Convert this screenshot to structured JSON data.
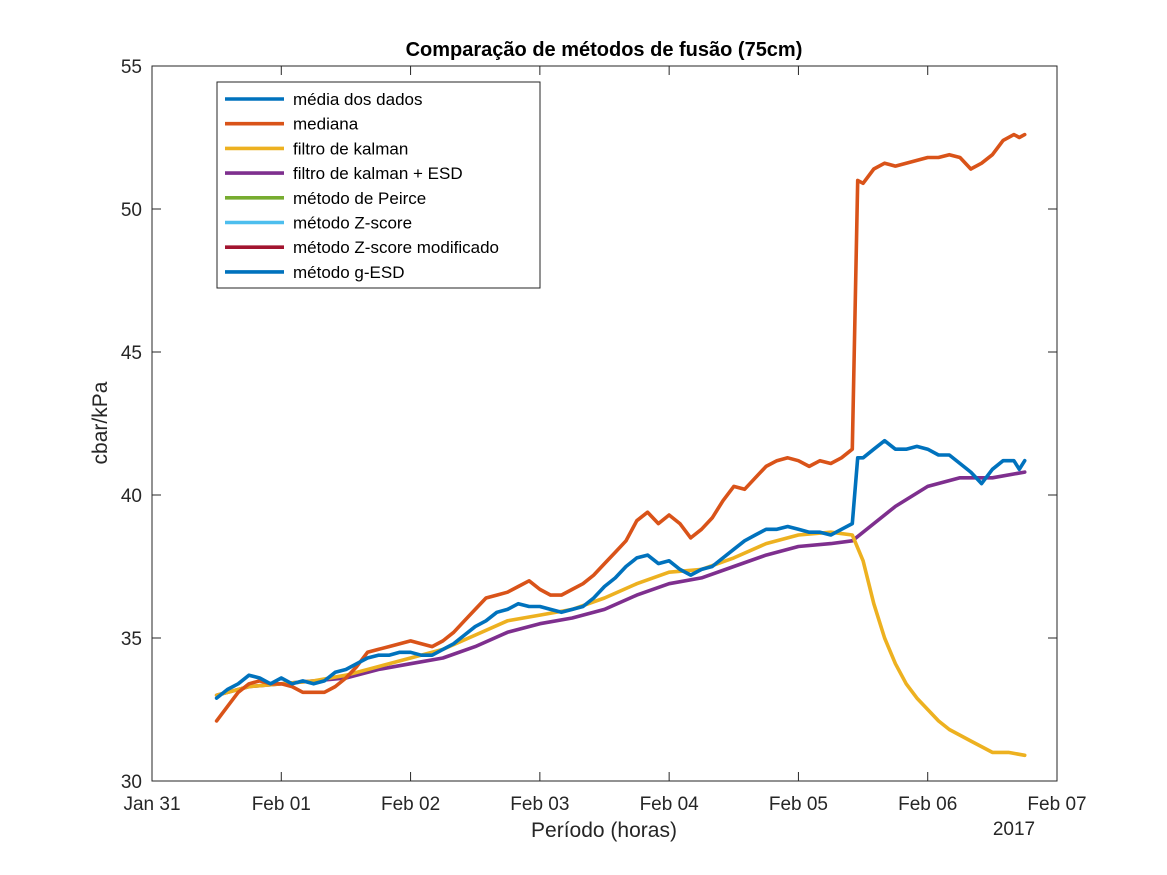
{
  "chart_data": {
    "type": "line",
    "title": "Comparação de métodos de fusão (75cm)",
    "xlabel": "Período (horas)",
    "ylabel": "cbar/kPa",
    "year_label": "2017",
    "x_unit": "date",
    "xlim": [
      "2017-01-31 00:00",
      "2017-02-07 00:00"
    ],
    "ylim": [
      30,
      55
    ],
    "x_ticks": [
      {
        "date": "2017-01-31 00:00",
        "label": "Jan 31"
      },
      {
        "date": "2017-02-01 00:00",
        "label": "Feb 01"
      },
      {
        "date": "2017-02-02 00:00",
        "label": "Feb 02"
      },
      {
        "date": "2017-02-03 00:00",
        "label": "Feb 03"
      },
      {
        "date": "2017-02-04 00:00",
        "label": "Feb 04"
      },
      {
        "date": "2017-02-05 00:00",
        "label": "Feb 05"
      },
      {
        "date": "2017-02-06 00:00",
        "label": "Feb 06"
      },
      {
        "date": "2017-02-07 00:00",
        "label": "Feb 07"
      }
    ],
    "y_ticks": [
      30,
      35,
      40,
      45,
      50,
      55
    ],
    "grid": false,
    "legend_position": "top-left",
    "series": [
      {
        "name": "média dos dados",
        "color": "#0072BD",
        "points": [
          [
            "2017-01-31 12:00",
            32.9
          ],
          [
            "2017-01-31 14:00",
            33.2
          ],
          [
            "2017-01-31 16:00",
            33.4
          ],
          [
            "2017-01-31 18:00",
            33.7
          ],
          [
            "2017-01-31 20:00",
            33.6
          ],
          [
            "2017-01-31 22:00",
            33.4
          ],
          [
            "2017-02-01 00:00",
            33.6
          ],
          [
            "2017-02-01 02:00",
            33.4
          ],
          [
            "2017-02-01 04:00",
            33.5
          ],
          [
            "2017-02-01 06:00",
            33.4
          ],
          [
            "2017-02-01 08:00",
            33.5
          ],
          [
            "2017-02-01 10:00",
            33.8
          ],
          [
            "2017-02-01 12:00",
            33.9
          ],
          [
            "2017-02-01 14:00",
            34.1
          ],
          [
            "2017-02-01 16:00",
            34.3
          ],
          [
            "2017-02-01 18:00",
            34.4
          ],
          [
            "2017-02-01 20:00",
            34.4
          ],
          [
            "2017-02-01 22:00",
            34.5
          ],
          [
            "2017-02-02 00:00",
            34.5
          ],
          [
            "2017-02-02 02:00",
            34.4
          ],
          [
            "2017-02-02 04:00",
            34.4
          ],
          [
            "2017-02-02 06:00",
            34.6
          ],
          [
            "2017-02-02 08:00",
            34.8
          ],
          [
            "2017-02-02 10:00",
            35.1
          ],
          [
            "2017-02-02 12:00",
            35.4
          ],
          [
            "2017-02-02 14:00",
            35.6
          ],
          [
            "2017-02-02 16:00",
            35.9
          ],
          [
            "2017-02-02 18:00",
            36.0
          ],
          [
            "2017-02-02 20:00",
            36.2
          ],
          [
            "2017-02-02 22:00",
            36.1
          ],
          [
            "2017-02-03 00:00",
            36.1
          ],
          [
            "2017-02-03 02:00",
            36.0
          ],
          [
            "2017-02-03 04:00",
            35.9
          ],
          [
            "2017-02-03 06:00",
            36.0
          ],
          [
            "2017-02-03 08:00",
            36.1
          ],
          [
            "2017-02-03 10:00",
            36.4
          ],
          [
            "2017-02-03 12:00",
            36.8
          ],
          [
            "2017-02-03 14:00",
            37.1
          ],
          [
            "2017-02-03 16:00",
            37.5
          ],
          [
            "2017-02-03 18:00",
            37.8
          ],
          [
            "2017-02-03 20:00",
            37.9
          ],
          [
            "2017-02-03 22:00",
            37.6
          ],
          [
            "2017-02-04 00:00",
            37.7
          ],
          [
            "2017-02-04 02:00",
            37.4
          ],
          [
            "2017-02-04 04:00",
            37.2
          ],
          [
            "2017-02-04 06:00",
            37.4
          ],
          [
            "2017-02-04 08:00",
            37.5
          ],
          [
            "2017-02-04 10:00",
            37.8
          ],
          [
            "2017-02-04 12:00",
            38.1
          ],
          [
            "2017-02-04 14:00",
            38.4
          ],
          [
            "2017-02-04 16:00",
            38.6
          ],
          [
            "2017-02-04 18:00",
            38.8
          ],
          [
            "2017-02-04 20:00",
            38.8
          ],
          [
            "2017-02-04 22:00",
            38.9
          ],
          [
            "2017-02-05 00:00",
            38.8
          ],
          [
            "2017-02-05 02:00",
            38.7
          ],
          [
            "2017-02-05 04:00",
            38.7
          ],
          [
            "2017-02-05 06:00",
            38.6
          ],
          [
            "2017-02-05 08:00",
            38.8
          ],
          [
            "2017-02-05 10:00",
            39.0
          ],
          [
            "2017-02-05 11:00",
            41.3
          ],
          [
            "2017-02-05 12:00",
            41.3
          ],
          [
            "2017-02-05 14:00",
            41.6
          ],
          [
            "2017-02-05 16:00",
            41.9
          ],
          [
            "2017-02-05 18:00",
            41.6
          ],
          [
            "2017-02-05 20:00",
            41.6
          ],
          [
            "2017-02-05 22:00",
            41.7
          ],
          [
            "2017-02-06 00:00",
            41.6
          ],
          [
            "2017-02-06 02:00",
            41.4
          ],
          [
            "2017-02-06 04:00",
            41.4
          ],
          [
            "2017-02-06 06:00",
            41.1
          ],
          [
            "2017-02-06 08:00",
            40.8
          ],
          [
            "2017-02-06 10:00",
            40.4
          ],
          [
            "2017-02-06 12:00",
            40.9
          ],
          [
            "2017-02-06 14:00",
            41.2
          ],
          [
            "2017-02-06 16:00",
            41.2
          ],
          [
            "2017-02-06 17:00",
            40.9
          ],
          [
            "2017-02-06 18:00",
            41.2
          ]
        ]
      },
      {
        "name": "mediana",
        "color": "#D95319",
        "points": [
          [
            "2017-01-31 12:00",
            32.1
          ],
          [
            "2017-01-31 14:00",
            32.6
          ],
          [
            "2017-01-31 16:00",
            33.1
          ],
          [
            "2017-01-31 18:00",
            33.4
          ],
          [
            "2017-01-31 20:00",
            33.5
          ],
          [
            "2017-01-31 22:00",
            33.4
          ],
          [
            "2017-02-01 00:00",
            33.4
          ],
          [
            "2017-02-01 02:00",
            33.3
          ],
          [
            "2017-02-01 04:00",
            33.1
          ],
          [
            "2017-02-01 06:00",
            33.1
          ],
          [
            "2017-02-01 08:00",
            33.1
          ],
          [
            "2017-02-01 10:00",
            33.3
          ],
          [
            "2017-02-01 12:00",
            33.6
          ],
          [
            "2017-02-01 14:00",
            34.0
          ],
          [
            "2017-02-01 16:00",
            34.5
          ],
          [
            "2017-02-01 18:00",
            34.6
          ],
          [
            "2017-02-01 20:00",
            34.7
          ],
          [
            "2017-02-01 22:00",
            34.8
          ],
          [
            "2017-02-02 00:00",
            34.9
          ],
          [
            "2017-02-02 02:00",
            34.8
          ],
          [
            "2017-02-02 04:00",
            34.7
          ],
          [
            "2017-02-02 06:00",
            34.9
          ],
          [
            "2017-02-02 08:00",
            35.2
          ],
          [
            "2017-02-02 10:00",
            35.6
          ],
          [
            "2017-02-02 12:00",
            36.0
          ],
          [
            "2017-02-02 14:00",
            36.4
          ],
          [
            "2017-02-02 16:00",
            36.5
          ],
          [
            "2017-02-02 18:00",
            36.6
          ],
          [
            "2017-02-02 20:00",
            36.8
          ],
          [
            "2017-02-02 22:00",
            37.0
          ],
          [
            "2017-02-03 00:00",
            36.7
          ],
          [
            "2017-02-03 02:00",
            36.5
          ],
          [
            "2017-02-03 04:00",
            36.5
          ],
          [
            "2017-02-03 06:00",
            36.7
          ],
          [
            "2017-02-03 08:00",
            36.9
          ],
          [
            "2017-02-03 10:00",
            37.2
          ],
          [
            "2017-02-03 12:00",
            37.6
          ],
          [
            "2017-02-03 14:00",
            38.0
          ],
          [
            "2017-02-03 16:00",
            38.4
          ],
          [
            "2017-02-03 18:00",
            39.1
          ],
          [
            "2017-02-03 20:00",
            39.4
          ],
          [
            "2017-02-03 22:00",
            39.0
          ],
          [
            "2017-02-04 00:00",
            39.3
          ],
          [
            "2017-02-04 02:00",
            39.0
          ],
          [
            "2017-02-04 04:00",
            38.5
          ],
          [
            "2017-02-04 06:00",
            38.8
          ],
          [
            "2017-02-04 08:00",
            39.2
          ],
          [
            "2017-02-04 10:00",
            39.8
          ],
          [
            "2017-02-04 12:00",
            40.3
          ],
          [
            "2017-02-04 14:00",
            40.2
          ],
          [
            "2017-02-04 16:00",
            40.6
          ],
          [
            "2017-02-04 18:00",
            41.0
          ],
          [
            "2017-02-04 20:00",
            41.2
          ],
          [
            "2017-02-04 22:00",
            41.3
          ],
          [
            "2017-02-05 00:00",
            41.2
          ],
          [
            "2017-02-05 02:00",
            41.0
          ],
          [
            "2017-02-05 04:00",
            41.2
          ],
          [
            "2017-02-05 06:00",
            41.1
          ],
          [
            "2017-02-05 08:00",
            41.3
          ],
          [
            "2017-02-05 10:00",
            41.6
          ],
          [
            "2017-02-05 11:00",
            51.0
          ],
          [
            "2017-02-05 12:00",
            50.9
          ],
          [
            "2017-02-05 14:00",
            51.4
          ],
          [
            "2017-02-05 16:00",
            51.6
          ],
          [
            "2017-02-05 18:00",
            51.5
          ],
          [
            "2017-02-05 20:00",
            51.6
          ],
          [
            "2017-02-05 22:00",
            51.7
          ],
          [
            "2017-02-06 00:00",
            51.8
          ],
          [
            "2017-02-06 02:00",
            51.8
          ],
          [
            "2017-02-06 04:00",
            51.9
          ],
          [
            "2017-02-06 06:00",
            51.8
          ],
          [
            "2017-02-06 08:00",
            51.4
          ],
          [
            "2017-02-06 10:00",
            51.6
          ],
          [
            "2017-02-06 12:00",
            51.9
          ],
          [
            "2017-02-06 14:00",
            52.4
          ],
          [
            "2017-02-06 16:00",
            52.6
          ],
          [
            "2017-02-06 17:00",
            52.5
          ],
          [
            "2017-02-06 18:00",
            52.6
          ]
        ]
      },
      {
        "name": "filtro de kalman",
        "color": "#EDB120",
        "points": [
          [
            "2017-01-31 12:00",
            33.0
          ],
          [
            "2017-01-31 18:00",
            33.3
          ],
          [
            "2017-02-01 00:00",
            33.4
          ],
          [
            "2017-02-01 06:00",
            33.5
          ],
          [
            "2017-02-01 12:00",
            33.7
          ],
          [
            "2017-02-01 18:00",
            34.0
          ],
          [
            "2017-02-02 00:00",
            34.3
          ],
          [
            "2017-02-02 06:00",
            34.6
          ],
          [
            "2017-02-02 12:00",
            35.1
          ],
          [
            "2017-02-02 18:00",
            35.6
          ],
          [
            "2017-02-03 00:00",
            35.8
          ],
          [
            "2017-02-03 06:00",
            36.0
          ],
          [
            "2017-02-03 12:00",
            36.4
          ],
          [
            "2017-02-03 18:00",
            36.9
          ],
          [
            "2017-02-04 00:00",
            37.3
          ],
          [
            "2017-02-04 06:00",
            37.4
          ],
          [
            "2017-02-04 12:00",
            37.8
          ],
          [
            "2017-02-04 18:00",
            38.3
          ],
          [
            "2017-02-05 00:00",
            38.6
          ],
          [
            "2017-02-05 06:00",
            38.7
          ],
          [
            "2017-02-05 10:00",
            38.6
          ],
          [
            "2017-02-05 12:00",
            37.7
          ],
          [
            "2017-02-05 14:00",
            36.2
          ],
          [
            "2017-02-05 16:00",
            35.0
          ],
          [
            "2017-02-05 18:00",
            34.1
          ],
          [
            "2017-02-05 20:00",
            33.4
          ],
          [
            "2017-02-05 22:00",
            32.9
          ],
          [
            "2017-02-06 00:00",
            32.5
          ],
          [
            "2017-02-06 02:00",
            32.1
          ],
          [
            "2017-02-06 04:00",
            31.8
          ],
          [
            "2017-02-06 08:00",
            31.4
          ],
          [
            "2017-02-06 12:00",
            31.0
          ],
          [
            "2017-02-06 15:00",
            31.0
          ],
          [
            "2017-02-06 18:00",
            30.9
          ]
        ]
      },
      {
        "name": "filtro de kalman + ESD",
        "color": "#7E2F8E",
        "points": [
          [
            "2017-01-31 12:00",
            33.0
          ],
          [
            "2017-01-31 18:00",
            33.3
          ],
          [
            "2017-02-01 00:00",
            33.4
          ],
          [
            "2017-02-01 06:00",
            33.5
          ],
          [
            "2017-02-01 12:00",
            33.6
          ],
          [
            "2017-02-01 18:00",
            33.9
          ],
          [
            "2017-02-02 00:00",
            34.1
          ],
          [
            "2017-02-02 06:00",
            34.3
          ],
          [
            "2017-02-02 12:00",
            34.7
          ],
          [
            "2017-02-02 18:00",
            35.2
          ],
          [
            "2017-02-03 00:00",
            35.5
          ],
          [
            "2017-02-03 06:00",
            35.7
          ],
          [
            "2017-02-03 12:00",
            36.0
          ],
          [
            "2017-02-03 18:00",
            36.5
          ],
          [
            "2017-02-04 00:00",
            36.9
          ],
          [
            "2017-02-04 06:00",
            37.1
          ],
          [
            "2017-02-04 12:00",
            37.5
          ],
          [
            "2017-02-04 18:00",
            37.9
          ],
          [
            "2017-02-05 00:00",
            38.2
          ],
          [
            "2017-02-05 06:00",
            38.3
          ],
          [
            "2017-02-05 10:00",
            38.4
          ],
          [
            "2017-02-05 14:00",
            39.0
          ],
          [
            "2017-02-05 18:00",
            39.6
          ],
          [
            "2017-02-06 00:00",
            40.3
          ],
          [
            "2017-02-06 06:00",
            40.6
          ],
          [
            "2017-02-06 12:00",
            40.6
          ],
          [
            "2017-02-06 18:00",
            40.8
          ]
        ]
      },
      {
        "name": "método de Peirce",
        "color": "#77AC30",
        "points": []
      },
      {
        "name": "método Z-score",
        "color": "#4DBEEE",
        "points": []
      },
      {
        "name": "método Z-score modificado",
        "color": "#A2142F",
        "points": []
      },
      {
        "name": "método g-ESD",
        "color": "#0072BD",
        "points": []
      }
    ]
  }
}
